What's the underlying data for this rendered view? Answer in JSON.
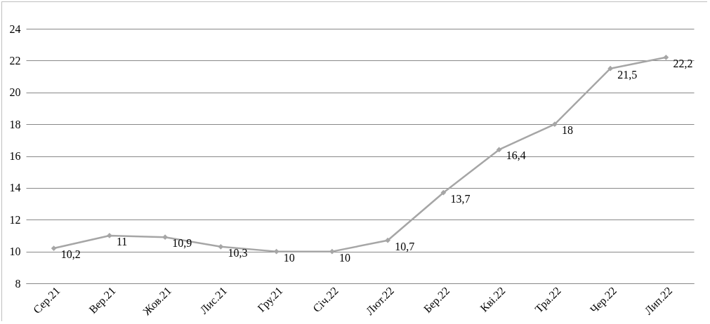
{
  "chart_data": {
    "type": "line",
    "categories": [
      "Сер.21",
      "Вер.21",
      "Жов.21",
      "Лис.21",
      "Гру.21",
      "Січ.22",
      "Лют.22",
      "Бер.22",
      "Кві.22",
      "Тра.22",
      "Чер.22",
      "Лип.22"
    ],
    "series": [
      {
        "color": "#a6a6a6",
        "values": [
          10.2,
          11,
          10.9,
          10.3,
          10,
          10,
          10.7,
          13.7,
          16.4,
          18,
          21.5,
          22.2
        ],
        "value_labels": [
          "10,2",
          "11",
          "10,9",
          "10,3",
          "10",
          "10",
          "10,7",
          "13,7",
          "16,4",
          "18",
          "21,5",
          "22,2"
        ]
      }
    ],
    "ylim": [
      8,
      24
    ],
    "yticks": [
      8,
      10,
      12,
      14,
      16,
      18,
      20,
      22,
      24
    ],
    "grid": "y",
    "marker": "diamond",
    "line_style": "solid"
  }
}
